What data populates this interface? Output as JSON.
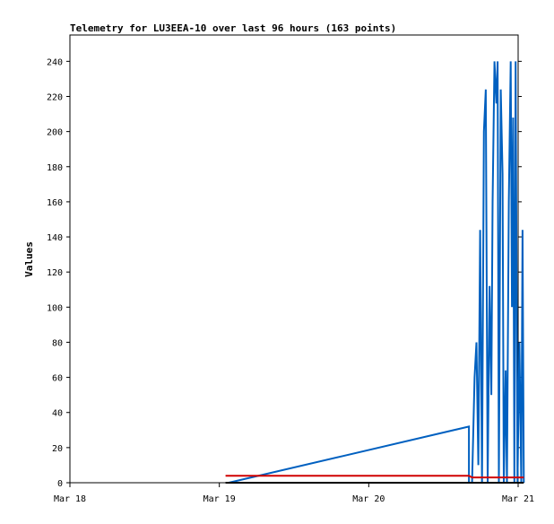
{
  "chart_data": {
    "type": "line",
    "title": "Telemetry for LU3EEA-10 over last 96 hours (163 points)",
    "xlabel": "",
    "ylabel": "Values",
    "x_unit": "hours",
    "xlim": [
      0,
      72
    ],
    "ylim": [
      0,
      255
    ],
    "y_ticks": [
      0,
      20,
      40,
      60,
      80,
      100,
      120,
      140,
      160,
      180,
      200,
      220,
      240
    ],
    "x_ticks": [
      {
        "hours": 0,
        "label": "Mar 18"
      },
      {
        "hours": 24,
        "label": "Mar 19"
      },
      {
        "hours": 48,
        "label": "Mar 20"
      },
      {
        "hours": 72,
        "label": "Mar 21"
      }
    ],
    "grid": false,
    "legend": "none",
    "series": [
      {
        "color": "#0060c0",
        "points": [
          [
            25.5,
            0
          ],
          [
            64.1,
            32
          ],
          [
            64.1,
            0
          ],
          [
            64.6,
            0
          ],
          [
            65.0,
            60
          ],
          [
            65.3,
            80
          ],
          [
            65.6,
            10
          ],
          [
            65.9,
            144
          ],
          [
            66.2,
            0
          ],
          [
            66.5,
            200
          ],
          [
            66.8,
            224
          ],
          [
            67.1,
            0
          ],
          [
            67.4,
            112
          ],
          [
            67.7,
            50
          ],
          [
            67.9,
            160
          ],
          [
            68.2,
            240
          ],
          [
            68.5,
            216
          ],
          [
            68.7,
            240
          ],
          [
            68.9,
            0
          ],
          [
            69.2,
            224
          ],
          [
            69.5,
            176
          ],
          [
            69.7,
            0
          ],
          [
            70.0,
            64
          ],
          [
            70.2,
            0
          ],
          [
            70.5,
            160
          ],
          [
            70.8,
            240
          ],
          [
            71.0,
            100
          ],
          [
            71.2,
            208
          ],
          [
            71.4,
            0
          ],
          [
            71.6,
            240
          ],
          [
            71.9,
            0
          ],
          [
            72.2,
            80
          ],
          [
            72.5,
            0
          ],
          [
            72.7,
            144
          ],
          [
            72.9,
            0
          ]
        ]
      },
      {
        "color": "#d00000",
        "points": [
          [
            25.0,
            4
          ],
          [
            64.1,
            4
          ],
          [
            64.6,
            3
          ],
          [
            72.9,
            3
          ]
        ]
      },
      {
        "color": "#000000",
        "points": [
          [
            25.0,
            0
          ],
          [
            72.9,
            0
          ]
        ]
      }
    ]
  }
}
